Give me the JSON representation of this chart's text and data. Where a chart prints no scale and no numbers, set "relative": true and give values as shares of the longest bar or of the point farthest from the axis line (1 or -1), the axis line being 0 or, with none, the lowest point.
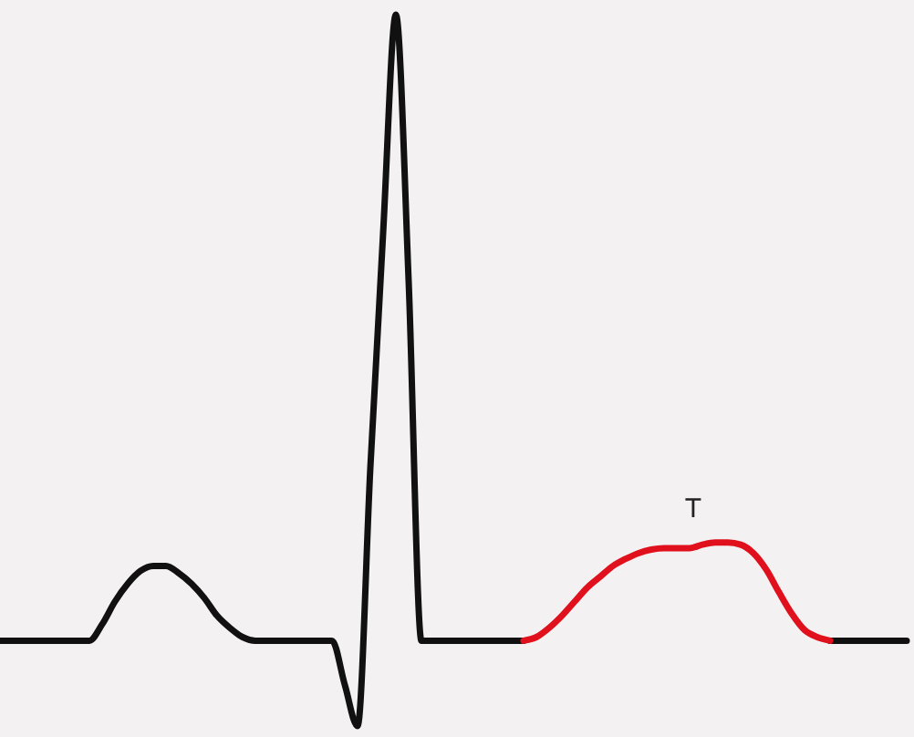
{
  "chart_data": {
    "type": "line",
    "relative": true,
    "annotations": [
      "T"
    ],
    "categories": [
      null,
      null,
      null,
      null,
      null,
      null,
      null,
      null,
      null,
      null,
      null,
      null,
      null,
      null,
      null,
      null,
      null,
      null,
      null,
      null,
      null,
      null,
      null,
      null,
      null,
      null,
      null,
      null,
      null,
      null,
      null,
      null,
      null,
      null,
      null,
      null,
      null,
      null,
      null,
      null,
      null,
      null,
      null,
      null,
      null,
      null,
      null,
      null,
      null,
      null,
      null,
      null,
      null,
      null,
      null,
      null,
      null,
      null,
      null,
      null,
      null,
      null,
      null,
      null,
      null,
      null,
      null,
      null,
      null,
      null,
      null,
      null
    ],
    "series": [
      {
        "color": "#111111",
        "values": [
          0.12,
          0.12,
          0.12,
          0.12,
          0.12,
          0.12,
          0.12,
          0.12,
          0.143,
          0.175,
          0.2,
          0.218,
          0.225,
          0.225,
          0.215,
          0.2,
          0.18,
          0.155,
          0.138,
          0.125,
          0.12,
          0.12,
          0.12,
          0.12,
          0.12,
          0.12,
          0.12,
          0.058,
          0,
          0.363,
          0.693,
          1,
          0.625,
          0.12,
          0.12,
          0.12,
          0.12,
          0.12,
          0.12,
          0.12,
          0.12,
          0.12,
          null,
          null,
          null,
          null,
          null,
          null,
          null,
          null,
          null,
          null,
          null,
          null,
          null,
          null,
          null,
          null,
          null,
          null,
          null,
          null,
          null,
          null,
          null,
          0.12,
          0.12,
          0.12,
          0.12,
          0.12,
          0.12,
          0.12
        ]
      },
      {
        "color": "#e0101c",
        "values": [
          null,
          null,
          null,
          null,
          null,
          null,
          null,
          null,
          null,
          null,
          null,
          null,
          null,
          null,
          null,
          null,
          null,
          null,
          null,
          null,
          null,
          null,
          null,
          null,
          null,
          null,
          null,
          null,
          null,
          null,
          null,
          null,
          null,
          null,
          null,
          null,
          null,
          null,
          null,
          null,
          null,
          0.12,
          0.125,
          0.138,
          0.155,
          0.175,
          0.195,
          0.21,
          0.225,
          0.235,
          0.243,
          0.248,
          0.25,
          0.25,
          0.25,
          0.255,
          0.258,
          0.258,
          0.255,
          0.243,
          0.22,
          0.188,
          0.158,
          0.135,
          0.125,
          0.12,
          null,
          null,
          null,
          null,
          null,
          null
        ]
      }
    ]
  }
}
